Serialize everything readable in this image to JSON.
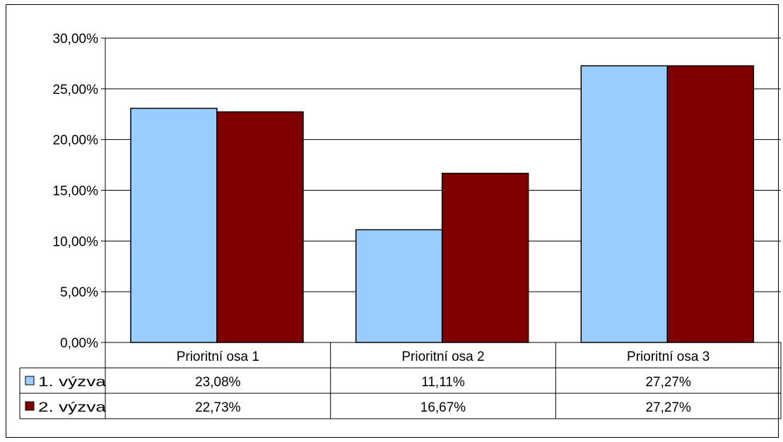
{
  "chart_data": {
    "type": "bar",
    "title": "",
    "xlabel": "",
    "ylabel": "",
    "ylim": [
      0,
      30
    ],
    "y_ticks": [
      0,
      5,
      10,
      15,
      20,
      25,
      30
    ],
    "y_tick_labels": [
      "0,00%",
      "5,00%",
      "10,00%",
      "15,00%",
      "20,00%",
      "25,00%",
      "30,00%"
    ],
    "grid": true,
    "legend": "data-table",
    "categories": [
      "Prioritní osa 1",
      "Prioritní osa 2",
      "Prioritní osa 3"
    ],
    "series": [
      {
        "name": "1. výzva",
        "color": "#99CCFF",
        "values": [
          23.08,
          11.11,
          27.27
        ],
        "labels": [
          "23,08%",
          "11,11%",
          "27,27%"
        ]
      },
      {
        "name": "2. výzva",
        "color": "#800000",
        "values": [
          22.73,
          16.67,
          27.27
        ],
        "labels": [
          "22,73%",
          "16,67%",
          "27,27%"
        ]
      }
    ]
  }
}
